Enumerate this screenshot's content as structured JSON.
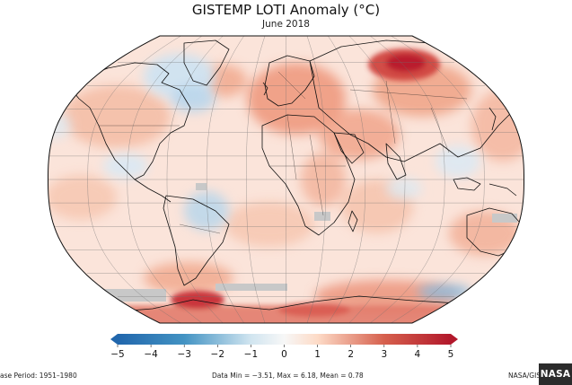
{
  "title": "GISTEMP LOTI Anomaly (°C)",
  "subtitle": "June 2018",
  "colorbar": {
    "ticks": [
      "−5",
      "−4",
      "−3",
      "−2",
      "−1",
      "0",
      "1",
      "2",
      "3",
      "4",
      "5"
    ],
    "min_color": "#2166ac",
    "mid_color": "#f7f7f7",
    "max_color": "#b2182b"
  },
  "footer": {
    "left": "ase Period: 1951–1980",
    "center": "Data Min = −3.51, Max = 6.18, Mean = 0.78",
    "right": "NASA/GISS/GISTEMP"
  },
  "badge": "NASA",
  "colors": {
    "warm_light": "#f6c4ae",
    "warm_mid": "#ec8f75",
    "warm_strong": "#c8323a",
    "cool_light": "#cfe3f1",
    "cool_mid": "#7fb2d8",
    "no_data": "#c8c8c8",
    "ocean_base": "#fbe3d8"
  }
}
